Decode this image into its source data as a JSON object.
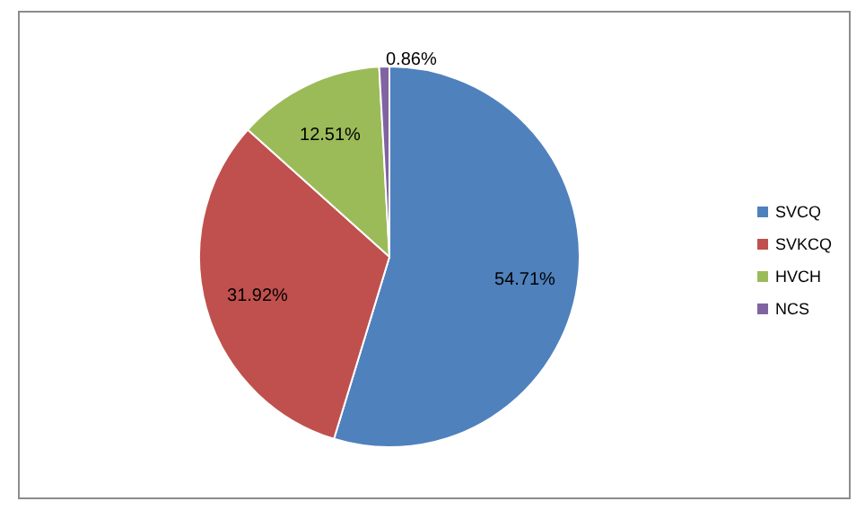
{
  "chart_data": {
    "type": "pie",
    "categories": [
      "SVCQ",
      "SVKCQ",
      "HVCH",
      "NCS"
    ],
    "values": [
      54.71,
      31.92,
      12.51,
      0.86
    ],
    "colors": [
      "#4f81bd",
      "#c0504d",
      "#9bbb59",
      "#8064a2"
    ],
    "value_labels": [
      "54.71%",
      "31.92%",
      "12.51%",
      "0.86%"
    ],
    "legend": "right"
  }
}
